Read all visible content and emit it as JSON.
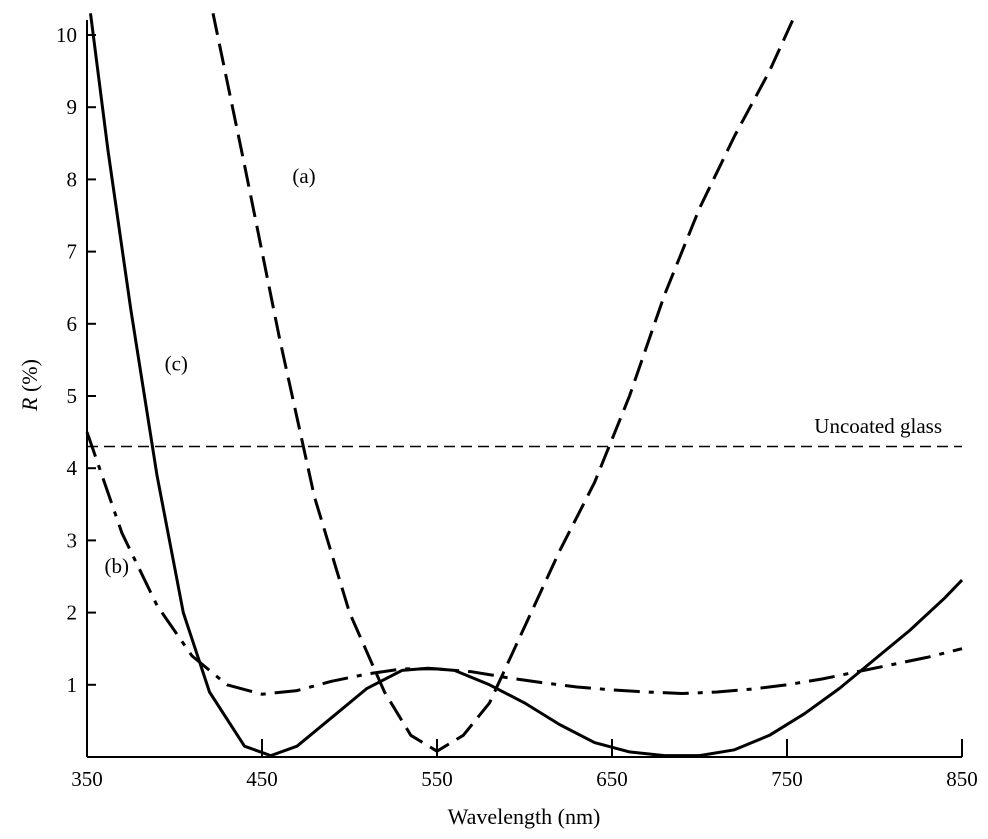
{
  "chart_data": {
    "type": "line",
    "xlabel": "Wavelength (nm)",
    "ylabel_italic": "R",
    "ylabel_rest": " (%)",
    "xlim": [
      350,
      850
    ],
    "ylim": [
      0,
      10.3
    ],
    "x_ticks": [
      350,
      450,
      550,
      650,
      750,
      850
    ],
    "y_ticks": [
      1,
      2,
      3,
      4,
      5,
      6,
      7,
      8,
      9,
      10
    ],
    "grid": false,
    "series": [
      {
        "name": "(a)",
        "style": "dashed",
        "points": [
          [
            422,
            10.3
          ],
          [
            440,
            8.2
          ],
          [
            460,
            5.8
          ],
          [
            480,
            3.6
          ],
          [
            500,
            2.0
          ],
          [
            520,
            0.9
          ],
          [
            535,
            0.3
          ],
          [
            550,
            0.08
          ],
          [
            565,
            0.3
          ],
          [
            580,
            0.75
          ],
          [
            600,
            1.8
          ],
          [
            620,
            2.85
          ],
          [
            640,
            3.8
          ],
          [
            660,
            5.0
          ],
          [
            680,
            6.4
          ],
          [
            700,
            7.6
          ],
          [
            720,
            8.6
          ],
          [
            740,
            9.5
          ],
          [
            755,
            10.3
          ]
        ]
      },
      {
        "name": "(b)",
        "style": "dash-dot",
        "points": [
          [
            350,
            4.5
          ],
          [
            370,
            3.1
          ],
          [
            390,
            2.1
          ],
          [
            410,
            1.4
          ],
          [
            430,
            1.0
          ],
          [
            450,
            0.87
          ],
          [
            470,
            0.92
          ],
          [
            490,
            1.05
          ],
          [
            510,
            1.15
          ],
          [
            530,
            1.22
          ],
          [
            550,
            1.22
          ],
          [
            570,
            1.18
          ],
          [
            590,
            1.1
          ],
          [
            610,
            1.03
          ],
          [
            630,
            0.97
          ],
          [
            650,
            0.93
          ],
          [
            670,
            0.9
          ],
          [
            690,
            0.88
          ],
          [
            710,
            0.9
          ],
          [
            730,
            0.94
          ],
          [
            750,
            1.0
          ],
          [
            770,
            1.08
          ],
          [
            790,
            1.18
          ],
          [
            810,
            1.28
          ],
          [
            830,
            1.38
          ],
          [
            850,
            1.5
          ]
        ]
      },
      {
        "name": "(c)",
        "style": "solid",
        "points": [
          [
            352,
            10.3
          ],
          [
            362,
            8.4
          ],
          [
            375,
            6.2
          ],
          [
            390,
            3.9
          ],
          [
            405,
            2.0
          ],
          [
            420,
            0.9
          ],
          [
            440,
            0.15
          ],
          [
            455,
            0.02
          ],
          [
            470,
            0.15
          ],
          [
            490,
            0.55
          ],
          [
            510,
            0.95
          ],
          [
            530,
            1.2
          ],
          [
            545,
            1.23
          ],
          [
            560,
            1.2
          ],
          [
            580,
            1.0
          ],
          [
            600,
            0.75
          ],
          [
            620,
            0.45
          ],
          [
            640,
            0.2
          ],
          [
            660,
            0.07
          ],
          [
            680,
            0.02
          ],
          [
            700,
            0.02
          ],
          [
            720,
            0.1
          ],
          [
            740,
            0.3
          ],
          [
            760,
            0.6
          ],
          [
            780,
            0.95
          ],
          [
            800,
            1.35
          ],
          [
            820,
            1.75
          ],
          [
            840,
            2.2
          ],
          [
            850,
            2.45
          ]
        ]
      }
    ],
    "reference_line": {
      "label": "Uncoated glass",
      "y": 4.3,
      "style": "dashed"
    },
    "annotations": [
      {
        "text": "(a)",
        "x": 474,
        "y": 7.95
      },
      {
        "text": "(b)",
        "x": 367,
        "y": 2.55
      },
      {
        "text": "(c)",
        "x": 401,
        "y": 5.35
      }
    ]
  }
}
